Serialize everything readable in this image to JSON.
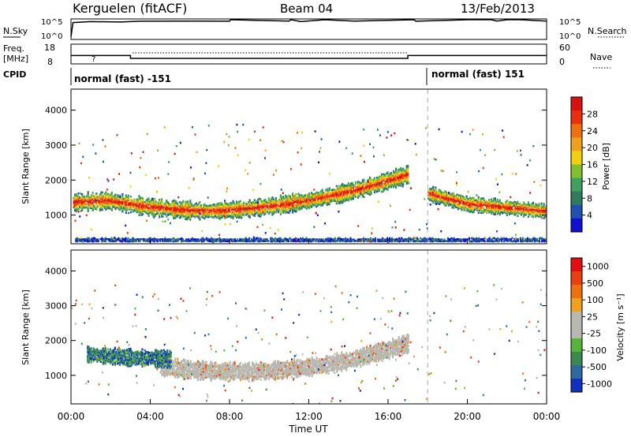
{
  "header": {
    "station": "Kerguelen (fitACF)",
    "beam": "Beam 04",
    "date": "13/Feb/2013"
  },
  "colors": {
    "echo_orange": "#f0a020",
    "echo_red": "#e83010",
    "ground_scatter_grey": "#b8b8b0"
  },
  "chart_data": [
    {
      "type": "line",
      "panel": "noise",
      "ylabel_left": "N.Sky",
      "ylabel_right": "N.Search",
      "y_ticks_left": [
        "10^5",
        "10^0"
      ],
      "y_ticks_right": [
        "10^5",
        "10^0"
      ],
      "series": [
        {
          "name": "N.Sky",
          "x_hours": [
            0,
            0.1,
            1,
            2.5,
            3.5,
            6,
            8,
            8.05,
            11,
            11.1,
            11.6,
            12.8,
            14.3,
            17.3,
            17.4,
            20,
            21.2,
            21.5,
            22,
            22.7,
            24
          ],
          "y_level": [
            0.1,
            0.85,
            0.9,
            0.88,
            0.92,
            0.93,
            0.92,
            1.0,
            0.93,
            1.0,
            0.9,
            1.0,
            0.93,
            1.0,
            0.92,
            1.0,
            1.0,
            0.93,
            1.0,
            1.0,
            0.93
          ]
        }
      ]
    },
    {
      "type": "line",
      "panel": "frequency",
      "ylabel_left": "Freq. [MHz]",
      "ylabel_right": "Nave",
      "y_ticks_left": [
        "18",
        "8"
      ],
      "y_ticks_right": [
        "60",
        "0"
      ],
      "annotation": "?",
      "series": [
        {
          "name": "Freq",
          "x_hours": [
            0,
            3,
            3,
            17,
            17,
            24
          ],
          "y_mhz": [
            12,
            12,
            10.5,
            10.5,
            12,
            12
          ]
        }
      ]
    },
    {
      "type": "table",
      "panel": "cpid",
      "label": "CPID",
      "segments": [
        {
          "start_hour": 0,
          "end_hour": 18,
          "text": "normal (fast) -151"
        },
        {
          "start_hour": 18,
          "end_hour": 24,
          "text": "normal (fast) 151"
        }
      ]
    },
    {
      "type": "heatmap",
      "panel": "power",
      "ylabel": "Slant Range [km]",
      "y_ticks": [
        1000,
        2000,
        3000,
        4000
      ],
      "ylim": [
        180,
        4600
      ],
      "xlim_hours": [
        0,
        24
      ],
      "colorbar": {
        "label": "Power [dB]",
        "ticks": [
          4,
          8,
          12,
          16,
          20,
          24,
          28
        ],
        "colors": [
          "#1010d0",
          "#2050b0",
          "#307a60",
          "#40a060",
          "#80c030",
          "#f0d010",
          "#f0a020",
          "#ee7010",
          "#e83010",
          "#d81010"
        ]
      },
      "bands": [
        {
          "start_hour": 0.1,
          "end_hour": 17.0,
          "range_km_center": [
            1350,
            1400,
            1250,
            1150,
            1100,
            1150,
            1250,
            1400,
            1600,
            1850,
            2150
          ],
          "thickness_km": 420
        },
        {
          "start_hour": 0.2,
          "end_hour": 24.0,
          "range_km_center": [
            280,
            280,
            280,
            280,
            280,
            280,
            280,
            280,
            280,
            280,
            280
          ],
          "thickness_km": 80
        },
        {
          "start_hour": 18.0,
          "end_hour": 24.0,
          "range_km_center": [
            1600,
            1300,
            1200,
            1100
          ],
          "thickness_km": 350
        }
      ]
    },
    {
      "type": "heatmap",
      "panel": "velocity",
      "ylabel": "Slant Range [km]",
      "xlabel": "Time UT",
      "x_ticks": [
        "00:00",
        "04:00",
        "08:00",
        "12:00",
        "16:00",
        "20:00",
        "00:00"
      ],
      "y_ticks": [
        1000,
        2000,
        3000,
        4000
      ],
      "ylim": [
        180,
        4600
      ],
      "xlim_hours": [
        0,
        24
      ],
      "colorbar": {
        "label": "Velocity [m s⁻¹]",
        "ticks": [
          "1000",
          "500",
          "100",
          "25",
          "-25",
          "-100",
          "-500",
          "-1000"
        ],
        "colors": [
          "#1030c0",
          "#2d6aa0",
          "#3a8a50",
          "#56b43c",
          "#b8b8b0",
          "#b8b8b0",
          "#f0a020",
          "#ee7010",
          "#e84010",
          "#e01010"
        ]
      },
      "bands": [
        {
          "start_hour": 4.5,
          "end_hour": 17.0,
          "range_km_center": [
            1250,
            1150,
            1100,
            1100,
            1150,
            1250,
            1400,
            1650,
            1900
          ],
          "thickness_km": 450,
          "class": "ground_scatter"
        },
        {
          "start_hour": 0.8,
          "end_hour": 5.0,
          "range_km_center": [
            1600,
            1500,
            1450
          ],
          "thickness_km": 400,
          "class": "ionospheric"
        }
      ]
    }
  ]
}
